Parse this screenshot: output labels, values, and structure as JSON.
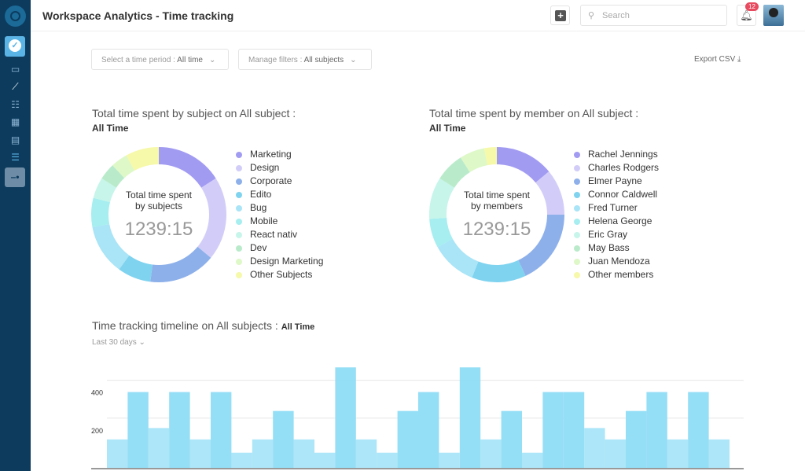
{
  "header": {
    "title": "Workspace Analytics - Time tracking",
    "search_placeholder": "Search",
    "notification_count": "12"
  },
  "filters": {
    "period_label": "Select a time period : ",
    "period_value": "All time",
    "filters_label": "Manage filters : ",
    "filters_value": "All subjects",
    "export": "Export CSV"
  },
  "subjects": {
    "title": "Total time spent by subject on All subject :",
    "subtitle": "All Time",
    "center_label_1": "Total time spent",
    "center_label_2": "by subjects",
    "total": "1239:15"
  },
  "members": {
    "title": "Total time spent by member on All subject :",
    "subtitle": "All Time",
    "center_label_1": "Total time spent",
    "center_label_2": "by members",
    "total": "1239:15"
  },
  "timeline": {
    "title": "Time tracking timeline on All subjects : ",
    "title_bold": "All Time",
    "range": "Last 30 days"
  },
  "chart_data": [
    {
      "type": "pie",
      "name": "subjects",
      "labels": [
        "Marketing",
        "Design",
        "Corporate",
        "Edito",
        "Bug",
        "Mobile",
        "React nativ",
        "Dev",
        "Design Marketing",
        "Other Subjects"
      ],
      "values": [
        16,
        20,
        16,
        8,
        12,
        7,
        5,
        4,
        4,
        8
      ],
      "colors": [
        "#a29bf2",
        "#d2cdf8",
        "#8db0ea",
        "#7fd3ef",
        "#a9e4f7",
        "#a6eef0",
        "#c7f5ea",
        "#b9ebcb",
        "#def8c8",
        "#f6f9a9"
      ]
    },
    {
      "type": "pie",
      "name": "members",
      "labels": [
        "Rachel Jennings",
        "Charles Rodgers",
        "Elmer Payne",
        "Connor Caldwell",
        "Fred Turner",
        "Helena George",
        "Eric Gray",
        "May Bass",
        "Juan Mendoza",
        "Other members"
      ],
      "values": [
        14,
        11,
        18,
        13,
        11,
        7,
        10,
        7,
        6,
        3
      ],
      "colors": [
        "#a29bf2",
        "#d2cdf8",
        "#8db0ea",
        "#7fd3ef",
        "#a9e4f7",
        "#a6eef0",
        "#c7f5ea",
        "#b9ebcb",
        "#def8c8",
        "#f6f9a9"
      ]
    },
    {
      "type": "bar",
      "name": "timeline",
      "values": [
        150,
        400,
        210,
        400,
        150,
        400,
        80,
        150,
        300,
        150,
        80,
        530,
        150,
        80,
        300,
        400,
        80,
        530,
        150,
        300,
        80,
        400,
        400,
        210,
        150,
        300,
        400,
        150,
        400,
        150
      ],
      "yticks": [
        200,
        400
      ],
      "ylim": [
        0,
        560
      ],
      "color": "#8edcf5"
    }
  ]
}
